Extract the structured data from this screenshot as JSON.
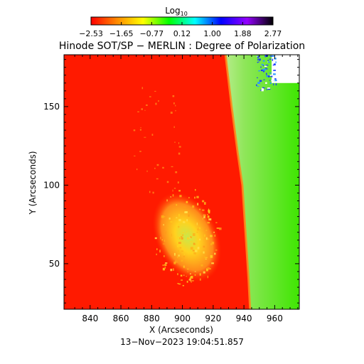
{
  "colorbar": {
    "label_main": "Log",
    "label_sub": "10",
    "ticks": [
      "−2.53",
      "−1.65",
      "−0.77",
      "0.12",
      "1.00",
      "1.88",
      "2.77"
    ],
    "range": [
      -2.53,
      2.77
    ],
    "colormap": [
      "#ff0000",
      "#ff8a00",
      "#ffff00",
      "#00ff00",
      "#00ffff",
      "#0000ff",
      "#9400ff",
      "#000000"
    ]
  },
  "chart_data": {
    "type": "heatmap",
    "title": "Hinode SOT/SP − MERLIN : Degree of Polarization",
    "xlabel": "X (Arcseconds)",
    "ylabel": "Y (Arcseconds)",
    "xlim": [
      823,
      976
    ],
    "ylim": [
      21,
      183
    ],
    "x_ticks": [
      840,
      860,
      880,
      900,
      920,
      940,
      960
    ],
    "y_ticks": [
      50,
      100,
      150
    ],
    "timestamp": "13−Nov−2023 19:04:51.857",
    "regions": {
      "disk": {
        "color": "#ff1a00",
        "value_approx": -2.5
      },
      "active_region_patch": {
        "x_range": [
          880,
          920
        ],
        "y_range": [
          40,
          100
        ],
        "color": "#ffd21f"
      },
      "limb_band": {
        "color": "#8fe65a"
      },
      "off_limb": {
        "color": "#3de600"
      },
      "invalid": {
        "color": "#ffffff"
      }
    },
    "limb_points": [
      {
        "x": 928,
        "y": 183
      },
      {
        "x": 932,
        "y": 150
      },
      {
        "x": 936,
        "y": 120
      },
      {
        "x": 939,
        "y": 100
      },
      {
        "x": 941,
        "y": 70
      },
      {
        "x": 943,
        "y": 40
      },
      {
        "x": 944,
        "y": 21
      }
    ]
  }
}
